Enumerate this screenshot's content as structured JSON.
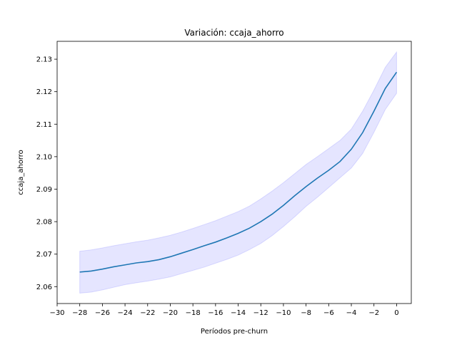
{
  "chart_data": {
    "type": "line",
    "title": "Variación: ccaja_ahorro",
    "xlabel": "Períodos pre-churn",
    "ylabel": "ccaja_ahorro",
    "xlim": [
      -30,
      1.3
    ],
    "ylim": [
      2.0548,
      2.1355
    ],
    "x_ticks": [
      -30,
      -28,
      -26,
      -24,
      -22,
      -20,
      -18,
      -16,
      -14,
      -12,
      -10,
      -8,
      -6,
      -4,
      -2,
      0
    ],
    "x_tick_labels": [
      "−30",
      "−28",
      "−26",
      "−24",
      "−22",
      "−20",
      "−18",
      "−16",
      "−14",
      "−12",
      "−10",
      "−8",
      "−6",
      "−4",
      "−2",
      "0"
    ],
    "y_ticks": [
      2.06,
      2.07,
      2.08,
      2.09,
      2.1,
      2.11,
      2.12,
      2.13
    ],
    "y_tick_labels": [
      "2.06",
      "2.07",
      "2.08",
      "2.09",
      "2.10",
      "2.11",
      "2.12",
      "2.13"
    ],
    "grid": false,
    "line_color": "#1f77b4",
    "band_color": "#0000ff",
    "series": [
      {
        "x": [
          -28,
          -27,
          -26,
          -25,
          -24,
          -23,
          -22,
          -21,
          -20,
          -19,
          -18,
          -17,
          -16,
          -15,
          -14,
          -13,
          -12,
          -11,
          -10,
          -9,
          -8,
          -7,
          -6,
          -5,
          -4,
          -3,
          -2,
          -1,
          0
        ],
        "values": [
          2.0645,
          2.0648,
          2.0654,
          2.0661,
          2.0667,
          2.0673,
          2.0677,
          2.0683,
          2.0692,
          2.0703,
          2.0714,
          2.0726,
          2.0737,
          2.075,
          2.0764,
          2.078,
          2.08,
          2.0823,
          2.085,
          2.088,
          2.0908,
          2.0934,
          2.0958,
          2.0985,
          2.1023,
          2.1074,
          2.114,
          2.121,
          2.126
        ],
        "lower": [
          2.058,
          2.0583,
          2.059,
          2.0598,
          2.0606,
          2.0612,
          2.0617,
          2.0623,
          2.063,
          2.064,
          2.065,
          2.066,
          2.0672,
          2.0684,
          2.0697,
          2.0714,
          2.0733,
          2.0757,
          2.0785,
          2.0815,
          2.0847,
          2.0875,
          2.0905,
          2.0935,
          2.0965,
          2.101,
          2.1075,
          2.1145,
          2.1195
        ],
        "upper": [
          2.0709,
          2.0713,
          2.0719,
          2.0726,
          2.0732,
          2.0738,
          2.0743,
          2.075,
          2.0758,
          2.0768,
          2.0779,
          2.0791,
          2.0803,
          2.0817,
          2.0831,
          2.0848,
          2.087,
          2.0894,
          2.092,
          2.0948,
          2.0976,
          2.1,
          2.1025,
          2.105,
          2.1085,
          2.114,
          2.1205,
          2.1275,
          2.1322
        ]
      }
    ]
  }
}
